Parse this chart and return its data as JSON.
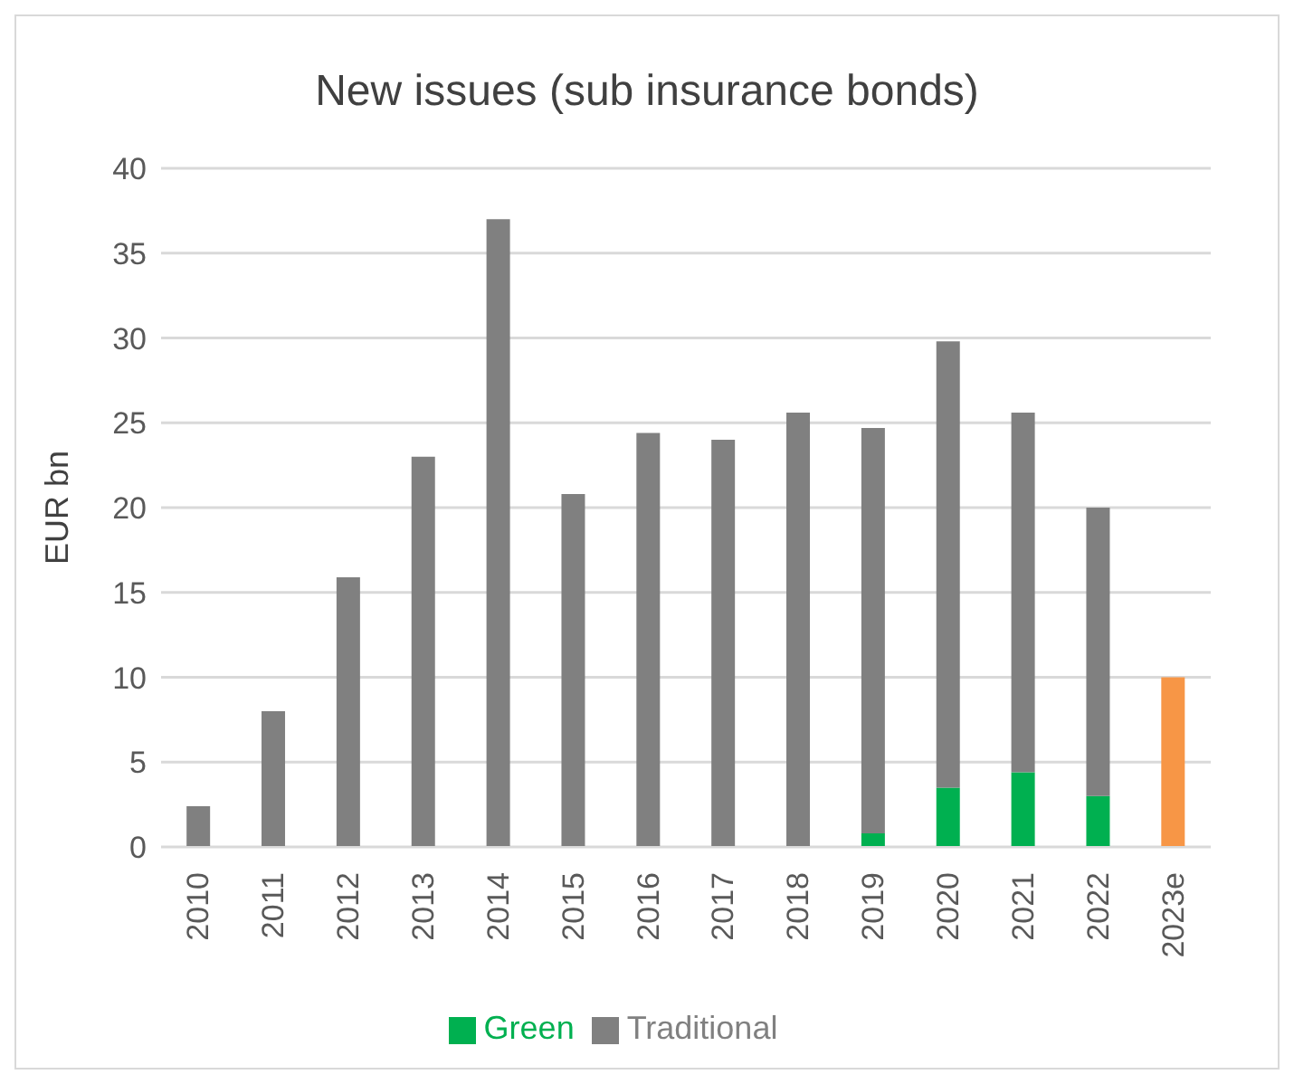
{
  "chart_data": {
    "type": "bar",
    "title": "New issues (sub insurance bonds)",
    "ylabel": "EUR bn",
    "categories": [
      "2010",
      "2011",
      "2012",
      "2013",
      "2014",
      "2015",
      "2016",
      "2017",
      "2018",
      "2019",
      "2020",
      "2021",
      "2022",
      "2023e"
    ],
    "stacked": true,
    "series": [
      {
        "name": "Green",
        "color": "#00b050",
        "values": [
          null,
          null,
          null,
          null,
          null,
          null,
          null,
          null,
          null,
          0.8,
          3.5,
          4.4,
          3,
          null
        ]
      },
      {
        "name": "Traditional",
        "color": "#808080",
        "colors": [
          "#808080",
          "#808080",
          "#808080",
          "#808080",
          "#808080",
          "#808080",
          "#808080",
          "#808080",
          "#808080",
          "#808080",
          "#808080",
          "#808080",
          "#808080",
          "#f79646"
        ],
        "values": [
          2.4,
          8,
          15.9,
          23,
          37,
          20.8,
          24.4,
          24,
          25.6,
          23.9,
          26.3,
          21.2,
          17,
          10
        ]
      }
    ],
    "ylim": [
      0,
      40
    ],
    "yticks": [
      0,
      5,
      10,
      15,
      20,
      25,
      30,
      35,
      40
    ],
    "grid": "y",
    "legend": "bottom"
  }
}
